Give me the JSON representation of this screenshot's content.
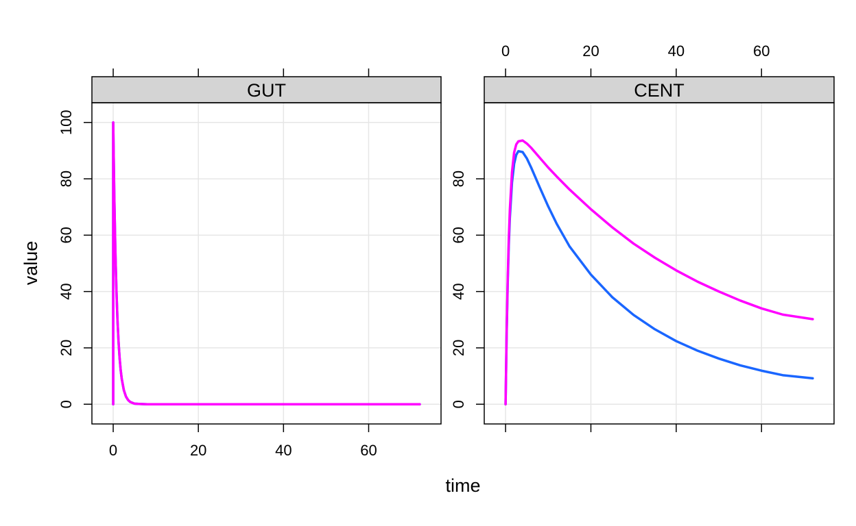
{
  "chart_data": {
    "type": "line",
    "xlabel": "time",
    "ylabel": "value",
    "xlim": [
      -5,
      77
    ],
    "ylim": [
      -7,
      107
    ],
    "grid": true,
    "colors": {
      "series_blue": "#1A66FF",
      "series_magenta": "#FF00FF",
      "strip_bg": "#D4D4D4",
      "grid": "#E6E6E6"
    },
    "panels": [
      {
        "strip_label": "GUT",
        "x_ticks": [
          0,
          20,
          40,
          60
        ],
        "x_tick_labels": [
          "0",
          "20",
          "40",
          "60"
        ],
        "x_labels_side": "bottom",
        "y_ticks": [
          0,
          20,
          40,
          60,
          80,
          100
        ],
        "y_tick_labels": [
          "0",
          "20",
          "40",
          "60",
          "80",
          "100"
        ],
        "y_labels_side": "left",
        "series": [
          {
            "color": "#1A66FF",
            "x": [
              0,
              0,
              0.25,
              0.5,
              0.75,
              1,
              1.25,
              1.5,
              1.75,
              2,
              2.5,
              3,
              3.5,
              4,
              5,
              6,
              8,
              10,
              20,
              30,
              40,
              50,
              60,
              72
            ],
            "y": [
              0,
              100,
              74.1,
              54.9,
              40.7,
              30.1,
              22.3,
              16.5,
              12.2,
              9.1,
              5.0,
              2.7,
              1.5,
              0.8,
              0.2,
              0.1,
              0,
              0,
              0,
              0,
              0,
              0,
              0,
              0
            ]
          },
          {
            "color": "#FF00FF",
            "x": [
              0,
              0,
              0.25,
              0.5,
              0.75,
              1,
              1.25,
              1.5,
              1.75,
              2,
              2.5,
              3,
              3.5,
              4,
              5,
              6,
              8,
              10,
              20,
              30,
              40,
              50,
              60,
              72
            ],
            "y": [
              0,
              100,
              74.1,
              54.9,
              40.7,
              30.1,
              22.3,
              16.5,
              12.2,
              9.1,
              5.0,
              2.7,
              1.5,
              0.8,
              0.2,
              0.1,
              0,
              0,
              0,
              0,
              0,
              0,
              0,
              0
            ]
          }
        ]
      },
      {
        "strip_label": "CENT",
        "x_ticks": [
          0,
          20,
          40,
          60
        ],
        "x_tick_labels": [
          "0",
          "20",
          "40",
          "60"
        ],
        "x_labels_side": "top",
        "y_ticks": [
          0,
          20,
          40,
          60,
          80
        ],
        "y_tick_labels": [
          "0",
          "20",
          "40",
          "60",
          "80"
        ],
        "y_labels_side": "left",
        "series": [
          {
            "color": "#1A66FF",
            "x": [
              0,
              0.25,
              0.5,
              0.75,
              1,
              1.5,
              2,
              2.5,
              3,
              4,
              5,
              6,
              8,
              10,
              12,
              15,
              20,
              25,
              30,
              35,
              40,
              45,
              50,
              55,
              60,
              65,
              72
            ],
            "y": [
              0,
              24.7,
              42.9,
              56.3,
              66.1,
              78.6,
              85.3,
              88.5,
              89.8,
              89.5,
              87.2,
              84.0,
              77.0,
              70.2,
              64.0,
              56.0,
              46.0,
              38.0,
              31.7,
              26.6,
              22.4,
              19.0,
              16.2,
              13.8,
              11.9,
              10.3,
              9.2
            ]
          },
          {
            "color": "#FF00FF",
            "x": [
              0,
              0.25,
              0.5,
              0.75,
              1,
              1.5,
              2,
              2.5,
              3,
              4,
              5,
              6,
              8,
              10,
              12,
              15,
              20,
              25,
              30,
              35,
              40,
              45,
              50,
              55,
              60,
              65,
              72
            ],
            "y": [
              0,
              25.5,
              44.5,
              58.6,
              69.0,
              82.3,
              89.3,
              92.2,
              93.3,
              93.6,
              92.5,
              91.0,
              87.5,
              84.0,
              80.8,
              76.2,
              69.2,
              62.8,
              57.0,
              52.0,
              47.5,
              43.5,
              40.0,
              36.8,
              34.0,
              31.8,
              30.2
            ]
          }
        ]
      }
    ]
  }
}
